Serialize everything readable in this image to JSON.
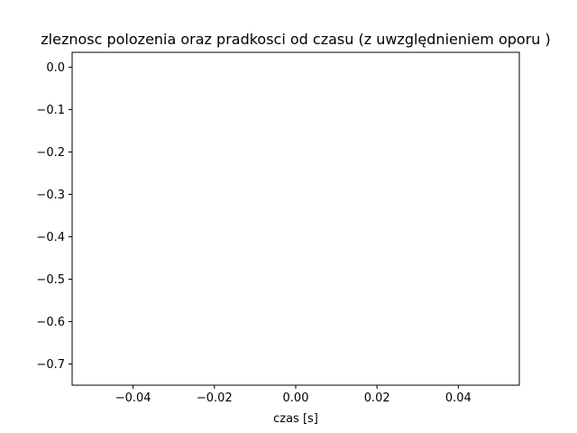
{
  "chart_data": {
    "type": "line",
    "title": "zleznosc polozenia oraz pradkosci od czasu (z uwzględnieniem oporu )",
    "xlabel": "czas [s]",
    "ylabel": "",
    "xlim": [
      -0.055,
      0.055
    ],
    "ylim": [
      -0.75,
      0.035
    ],
    "x_ticks": [
      {
        "value": -0.04,
        "label": "−0.04"
      },
      {
        "value": -0.02,
        "label": "−0.02"
      },
      {
        "value": 0.0,
        "label": "0.00"
      },
      {
        "value": 0.02,
        "label": "0.02"
      },
      {
        "value": 0.04,
        "label": "0.04"
      }
    ],
    "y_ticks": [
      {
        "value": 0.0,
        "label": "0.0"
      },
      {
        "value": -0.1,
        "label": "−0.1"
      },
      {
        "value": -0.2,
        "label": "−0.2"
      },
      {
        "value": -0.3,
        "label": "−0.3"
      },
      {
        "value": -0.4,
        "label": "−0.4"
      },
      {
        "value": -0.5,
        "label": "−0.5"
      },
      {
        "value": -0.6,
        "label": "−0.6"
      },
      {
        "value": -0.7,
        "label": "−0.7"
      }
    ],
    "series": [],
    "grid": false,
    "colors": {
      "axes": "#000000",
      "background": "#ffffff"
    }
  }
}
